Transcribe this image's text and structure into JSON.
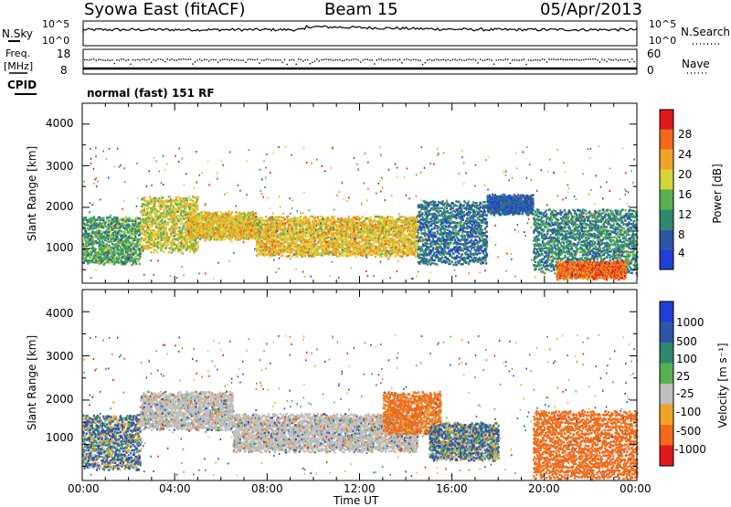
{
  "header": {
    "station": "Syowa East (fitACF)",
    "beam": "Beam 15",
    "date": "05/Apr/2013"
  },
  "noise_panel": {
    "left_label": "N.Sky",
    "right_label": "N.Search",
    "left_ticks": [
      "10^5",
      "10^0"
    ],
    "right_ticks": [
      "10^5",
      "10^0"
    ]
  },
  "freq_panel": {
    "left_label_1": "Freq.",
    "left_label_2": "[MHz]",
    "left_ticks": [
      "18",
      "8"
    ],
    "right_label": "Nave",
    "right_ticks": [
      "60",
      "0"
    ],
    "cpid_label": "CPID"
  },
  "mode_text": "normal (fast) 151 RF",
  "power_panel": {
    "ylabel": "Slant Range [km]",
    "yticks": [
      "4000",
      "3000",
      "2000",
      "1000"
    ],
    "colorbar_label": "Power [dB]",
    "colorbar_ticks": [
      "28",
      "24",
      "20",
      "16",
      "12",
      "8",
      "4"
    ]
  },
  "velocity_panel": {
    "ylabel": "Slant Range [km]",
    "yticks": [
      "4000",
      "3000",
      "2000",
      "1000"
    ],
    "colorbar_label": "Velocity [m s⁻¹]",
    "colorbar_ticks": [
      "1000",
      "500",
      "100",
      "25",
      "-25",
      "-100",
      "-500",
      "-1000"
    ]
  },
  "xaxis": {
    "ticks": [
      "00:00",
      "04:00",
      "08:00",
      "12:00",
      "16:00",
      "20:00",
      "00:00"
    ],
    "label": "Time UT"
  },
  "colors": {
    "power_scale": [
      "#1f3fd6",
      "#2f55a6",
      "#2e8a6e",
      "#58b050",
      "#d7d43a",
      "#f0a42a",
      "#f06a1a",
      "#e01a1a"
    ],
    "velocity_scale": [
      "#1f3fd6",
      "#2f55a6",
      "#2e8a6e",
      "#58b050",
      "#bfbfbf",
      "#f0a42a",
      "#f06a1a",
      "#e01a1a"
    ],
    "ground_scatter": "#bfbfbf"
  },
  "chart_data": [
    {
      "type": "heatmap",
      "title": "Power",
      "xlabel": "Time UT",
      "ylabel": "Slant Range [km]",
      "xlim": [
        0,
        24
      ],
      "ylim": [
        180,
        4500
      ],
      "zlabel": "Power [dB]",
      "zlim": [
        0,
        32
      ],
      "features": [
        {
          "t_start": 0.0,
          "t_end": 2.5,
          "range_low": 700,
          "range_high": 1800,
          "power": 12
        },
        {
          "t_start": 2.5,
          "t_end": 5.0,
          "range_low": 1000,
          "range_high": 2300,
          "power": 18
        },
        {
          "t_start": 4.5,
          "t_end": 7.5,
          "range_low": 1300,
          "range_high": 1900,
          "power": 20
        },
        {
          "t_start": 7.5,
          "t_end": 14.5,
          "range_low": 900,
          "range_high": 1800,
          "power": 20
        },
        {
          "t_start": 14.5,
          "t_end": 17.5,
          "range_low": 700,
          "range_high": 2200,
          "power": 8
        },
        {
          "t_start": 17.5,
          "t_end": 19.5,
          "range_low": 1900,
          "range_high": 2300,
          "power": 6
        },
        {
          "t_start": 19.5,
          "t_end": 24.0,
          "range_low": 500,
          "range_high": 2000,
          "power": 10
        },
        {
          "t_start": 20.5,
          "t_end": 23.5,
          "range_low": 350,
          "range_high": 700,
          "power": 26
        }
      ]
    },
    {
      "type": "heatmap",
      "title": "Velocity",
      "xlabel": "Time UT",
      "ylabel": "Slant Range [km]",
      "xlim": [
        0,
        24
      ],
      "ylim": [
        180,
        4500
      ],
      "zlabel": "Velocity [m s⁻¹]",
      "zlim": [
        -1000,
        1000
      ],
      "features": [
        {
          "t_start": 0.0,
          "t_end": 2.5,
          "range_low": 500,
          "range_high": 1700,
          "velocity": 100
        },
        {
          "t_start": 2.5,
          "t_end": 6.5,
          "range_low": 1400,
          "range_high": 2200,
          "velocity": 0
        },
        {
          "t_start": 6.5,
          "t_end": 14.5,
          "range_low": 900,
          "range_high": 1700,
          "velocity": 0
        },
        {
          "t_start": 13.0,
          "t_end": 15.5,
          "range_low": 1300,
          "range_high": 2200,
          "velocity": -200
        },
        {
          "t_start": 15.0,
          "t_end": 18.0,
          "range_low": 700,
          "range_high": 1500,
          "velocity": 100
        },
        {
          "t_start": 19.5,
          "t_end": 24.0,
          "range_low": 300,
          "range_high": 1800,
          "velocity": -300
        }
      ]
    }
  ]
}
